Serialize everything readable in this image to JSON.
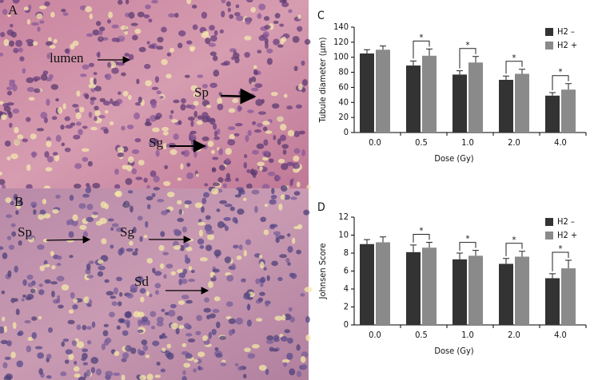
{
  "panels": [
    {
      "label": "A",
      "annotations": [
        "lumen",
        "Sp",
        "Sg"
      ]
    },
    {
      "label": "B",
      "annotations": [
        "Sp",
        "Sg",
        "Sd"
      ]
    }
  ],
  "chart_data": [
    {
      "type": "bar",
      "panel_label": "C",
      "y_label": "Tubule diameter (μm)",
      "x_label": "Dose (Gy)",
      "categories": [
        "0.0",
        "0.5",
        "1.0",
        "2.0",
        "4.0"
      ],
      "series": [
        {
          "name": "H2 –",
          "color": "#333333",
          "values": [
            105,
            89,
            77,
            70,
            49
          ],
          "errors": [
            5,
            6,
            5,
            5,
            4
          ]
        },
        {
          "name": "H2 +",
          "color": "#8a8a8a",
          "values": [
            110,
            102,
            93,
            78,
            57
          ],
          "errors": [
            5,
            9,
            8,
            6,
            8
          ]
        }
      ],
      "ylim": [
        0,
        140
      ],
      "yticks": [
        0,
        20,
        40,
        60,
        80,
        100,
        120,
        140
      ],
      "significance_labels": [
        null,
        "*",
        "*",
        "*",
        "*"
      ]
    },
    {
      "type": "bar",
      "panel_label": "D",
      "y_label": "Johnsen Score",
      "x_label": "Dose (Gy)",
      "categories": [
        "0.0",
        "0.5",
        "1.0",
        "2.0",
        "4.0"
      ],
      "series": [
        {
          "name": "H2 –",
          "color": "#333333",
          "values": [
            9.0,
            8.1,
            7.3,
            6.8,
            5.2
          ],
          "errors": [
            0.5,
            0.8,
            0.7,
            0.6,
            0.5
          ]
        },
        {
          "name": "H2 +",
          "color": "#8a8a8a",
          "values": [
            9.2,
            8.6,
            7.7,
            7.6,
            6.3
          ],
          "errors": [
            0.6,
            0.6,
            0.6,
            0.6,
            0.9
          ]
        }
      ],
      "ylim": [
        0,
        12
      ],
      "yticks": [
        0,
        2,
        4,
        6,
        8,
        10,
        12
      ],
      "significance_labels": [
        null,
        "*",
        "*",
        "*",
        "*"
      ]
    }
  ]
}
